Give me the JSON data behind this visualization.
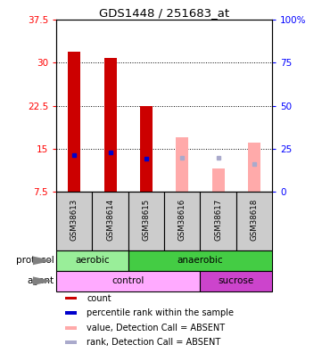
{
  "title": "GDS1448 / 251683_at",
  "samples": [
    "GSM38613",
    "GSM38614",
    "GSM38615",
    "GSM38616",
    "GSM38617",
    "GSM38618"
  ],
  "bar_values": [
    32.0,
    30.8,
    22.4,
    null,
    null,
    null
  ],
  "absent_values": [
    null,
    null,
    null,
    17.0,
    11.5,
    16.0
  ],
  "rank_present": [
    21.0,
    22.5,
    19.0,
    null,
    null,
    null
  ],
  "rank_absent": [
    null,
    null,
    null,
    19.5,
    19.5,
    16.0
  ],
  "bar_color_present": "#cc0000",
  "bar_color_absent": "#ffaaaa",
  "rank_color_present": "#0000cc",
  "rank_color_absent": "#aaaacc",
  "ylim_left": [
    7.5,
    37.5
  ],
  "ylim_right": [
    0,
    100
  ],
  "yticks_left": [
    7.5,
    15.0,
    22.5,
    30.0,
    37.5
  ],
  "yticks_right": [
    0,
    25,
    50,
    75,
    100
  ],
  "ytick_labels_left": [
    "7.5",
    "15",
    "22.5",
    "30",
    "37.5"
  ],
  "ytick_labels_right": [
    "0",
    "25",
    "50",
    "75",
    "100%"
  ],
  "color_aerobic": "#99ee99",
  "color_anaerobic": "#44cc44",
  "color_control": "#ffaaff",
  "color_sucrose": "#cc44cc",
  "color_sample_bg": "#cccccc",
  "legend_items": [
    {
      "label": "count",
      "color": "#cc0000"
    },
    {
      "label": "percentile rank within the sample",
      "color": "#0000cc"
    },
    {
      "label": "value, Detection Call = ABSENT",
      "color": "#ffaaaa"
    },
    {
      "label": "rank, Detection Call = ABSENT",
      "color": "#aaaacc"
    }
  ]
}
